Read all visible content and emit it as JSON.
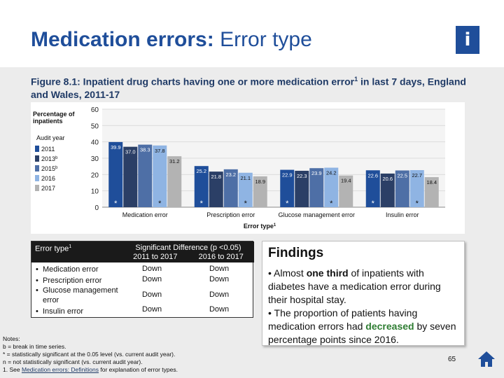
{
  "slide": {
    "title_bold": "Medication errors:",
    "title_rest": " Error type",
    "info_label": "i",
    "figure_caption_a": "Figure 8.1: Inpatient drug charts having one or more medication error",
    "figure_caption_sup": "1",
    "figure_caption_b": " in last 7 days,",
    "figure_caption_c": " England and Wales, 2011-17",
    "page_number": "65"
  },
  "chart_data": {
    "type": "bar",
    "ylabel": "Percentage of inpatients",
    "xlabel": "Error type",
    "xlabel_sup": "1",
    "ylim": [
      0,
      60
    ],
    "yticks": [
      "0",
      "10",
      "20",
      "30",
      "40",
      "50",
      "60"
    ],
    "legend_title": "Audit year",
    "categories": [
      "Medication error",
      "Prescription error",
      "Glucose management error",
      "Insulin error"
    ],
    "series": [
      {
        "name": "2011",
        "color": "#1f4e9a",
        "values": [
          39.9,
          25.2,
          22.9,
          22.6
        ]
      },
      {
        "name": "2013",
        "name_sup": "b",
        "color": "#2b3f66",
        "values": [
          37.0,
          21.8,
          22.3,
          20.6
        ]
      },
      {
        "name": "2015",
        "name_sup": "b",
        "color": "#4e6fa6",
        "values": [
          38.3,
          23.2,
          23.9,
          22.5
        ]
      },
      {
        "name": "2016",
        "color": "#8fb4e3",
        "values": [
          37.8,
          21.1,
          24.2,
          22.7
        ]
      },
      {
        "name": "2017",
        "color": "#b3b3b3",
        "values": [
          31.2,
          18.9,
          19.4,
          18.4
        ]
      }
    ],
    "value_labels": [
      [
        "39.9",
        "37.0",
        "38.3",
        "37.8",
        "31.2"
      ],
      [
        "25.2",
        "21.8",
        "23.2",
        "21.1",
        "18.9"
      ],
      [
        "22.9",
        "22.3",
        "23.9",
        "24.2",
        "19.4"
      ],
      [
        "22.6",
        "20.6",
        "22.5",
        "22.7",
        "18.4"
      ]
    ],
    "significance_marker": "*",
    "markers": [
      {
        "category": 0,
        "series": 0
      },
      {
        "category": 0,
        "series": 3
      },
      {
        "category": 1,
        "series": 0
      },
      {
        "category": 1,
        "series": 3
      },
      {
        "category": 2,
        "series": 0
      },
      {
        "category": 2,
        "series": 3
      },
      {
        "category": 3,
        "series": 0
      },
      {
        "category": 3,
        "series": 3
      }
    ]
  },
  "table": {
    "header_left": "Error type",
    "header_left_sup": "1",
    "header_right": "Significant Difference (p <0.05)",
    "col1": "2011 to 2017",
    "col2": "2016 to 2017",
    "rows": [
      {
        "label": "Medication error",
        "c1": "Down",
        "c2": "Down"
      },
      {
        "label": "Prescription error",
        "c1": "Down",
        "c2": "Down"
      },
      {
        "label": "Glucose management error",
        "c1": "Down",
        "c2": "Down"
      },
      {
        "label": "Insulin error",
        "c1": "Down",
        "c2": "Down"
      }
    ]
  },
  "notes": {
    "heading": "Notes:",
    "line1": "b = break in time series.",
    "line2": "* = statistically significant at the 0.05 level (vs. current audit year).",
    "line3": "n = not statistically significant (vs. current audit year).",
    "line4_a": "1. See ",
    "line4_link": "Medication errors: Definitions",
    "line4_b": " for explanation of error types."
  },
  "findings": {
    "title": "Findings",
    "p1_a": "•   Almost ",
    "p1_bold": "one third",
    "p1_b": " of inpatients with diabetes have a medication error during their hospital stay.",
    "p2_a": "•   The proportion of patients having medication errors had ",
    "p2_bold": "decreased",
    "p2_b": " by seven percentage points since 2016."
  }
}
